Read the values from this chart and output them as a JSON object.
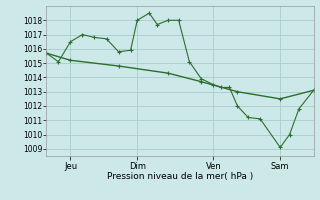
{
  "background_color": "#cce8e8",
  "grid_color": "#aacccc",
  "line_color": "#2d6e2d",
  "marker_color": "#2d6e2d",
  "xlabel": "Pression niveau de la mer( hPa )",
  "ylim": [
    1008.5,
    1019.0
  ],
  "yticks": [
    1009,
    1010,
    1011,
    1012,
    1013,
    1014,
    1015,
    1016,
    1017,
    1018
  ],
  "day_labels": [
    "Jeu",
    "Dim",
    "Ven",
    "Sam"
  ],
  "day_positions": [
    0.09,
    0.34,
    0.625,
    0.875
  ],
  "series1_x": [
    0.0,
    0.045,
    0.09,
    0.135,
    0.18,
    0.225,
    0.27,
    0.315,
    0.34,
    0.385,
    0.415,
    0.455,
    0.495,
    0.535,
    0.58,
    0.625,
    0.655,
    0.685,
    0.715,
    0.755,
    0.8,
    0.875,
    0.91,
    0.945,
    1.0
  ],
  "series1_y": [
    1015.7,
    1015.1,
    1016.5,
    1017.0,
    1016.8,
    1016.7,
    1015.8,
    1015.9,
    1018.0,
    1018.5,
    1017.7,
    1018.0,
    1018.0,
    1015.1,
    1013.9,
    1013.5,
    1013.3,
    1013.3,
    1012.0,
    1011.2,
    1011.1,
    1009.1,
    1010.0,
    1011.8,
    1013.1
  ],
  "series2_x": [
    0.0,
    0.09,
    0.27,
    0.455,
    0.58,
    0.715,
    0.875,
    1.0
  ],
  "series2_y": [
    1015.7,
    1015.2,
    1014.8,
    1014.3,
    1013.7,
    1013.0,
    1012.5,
    1013.1
  ]
}
